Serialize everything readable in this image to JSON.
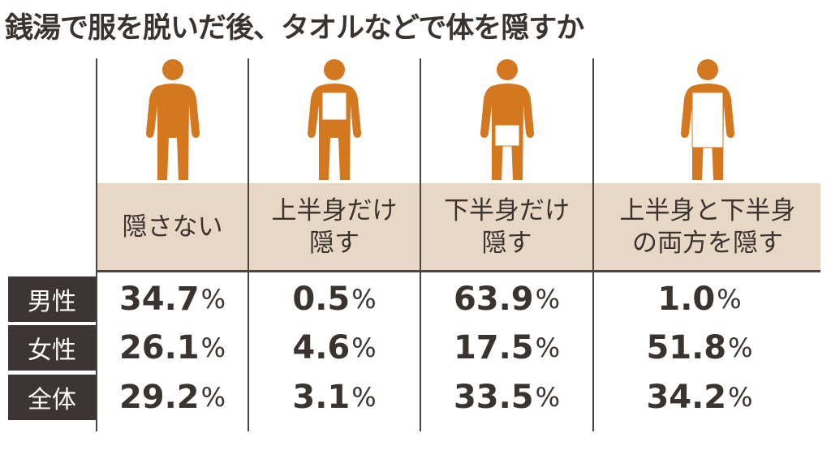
{
  "chart_data": {
    "type": "table",
    "title": "銭湯で服を脱いだ後、タオルなどで体を隠すか",
    "columns": [
      {
        "label_lines": [
          "隠さない"
        ],
        "icon": "person-no-towel-icon"
      },
      {
        "label_lines": [
          "上半身だけ",
          "隠す"
        ],
        "icon": "person-upper-towel-icon"
      },
      {
        "label_lines": [
          "下半身だけ",
          "隠す"
        ],
        "icon": "person-lower-towel-icon"
      },
      {
        "label_lines": [
          "上半身と下半身",
          "の両方を隠す"
        ],
        "icon": "person-full-towel-icon"
      }
    ],
    "rows": [
      {
        "label": "男性",
        "values": [
          "34.7",
          "0.5",
          "63.9",
          "1.0"
        ]
      },
      {
        "label": "女性",
        "values": [
          "26.1",
          "4.6",
          "17.5",
          "51.8"
        ]
      },
      {
        "label": "全体",
        "values": [
          "29.2",
          "3.1",
          "33.5",
          "34.2"
        ]
      }
    ],
    "unit": "%",
    "colors": {
      "figure": "#d4781f",
      "header_band": "#e9d7c6",
      "row_header": "#3d3534"
    }
  }
}
